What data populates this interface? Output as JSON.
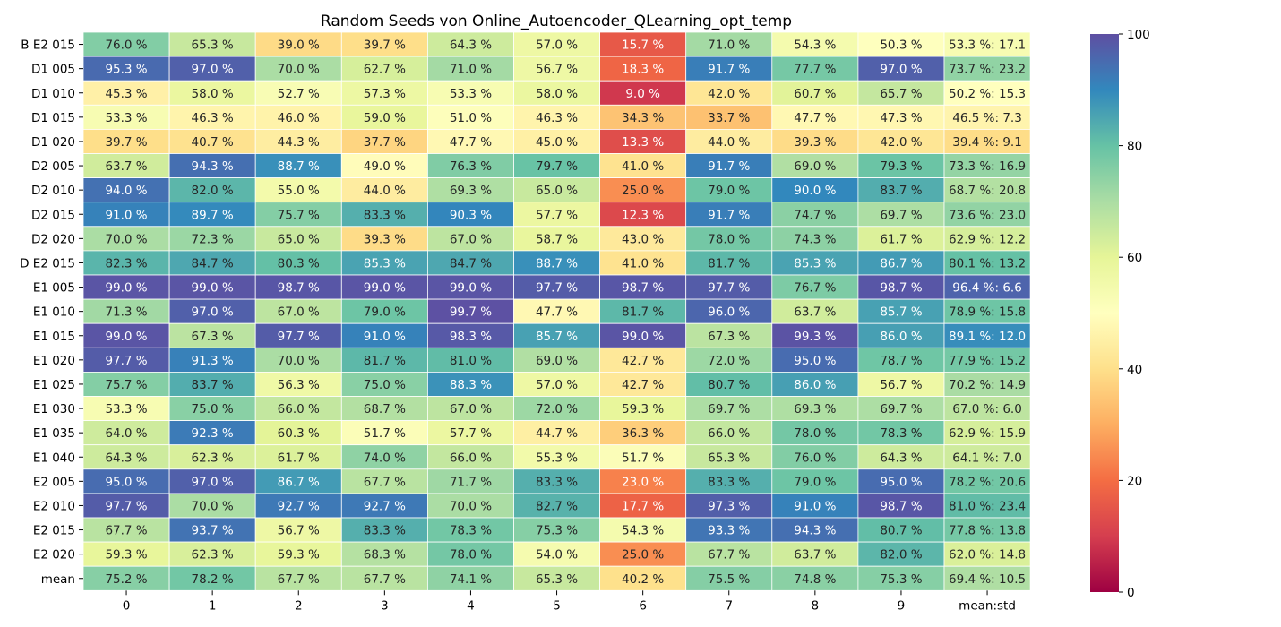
{
  "chart_data": {
    "type": "heatmap",
    "title": "Random Seeds von Online_Autoencoder_QLearning_opt_temp",
    "x_categories": [
      "0",
      "1",
      "2",
      "3",
      "4",
      "5",
      "6",
      "7",
      "8",
      "9",
      "mean:std"
    ],
    "y_categories": [
      "B E2 015",
      "D1 005",
      "D1 010",
      "D1 015",
      "D1 020",
      "D2 005",
      "D2 010",
      "D2 015",
      "D2 020",
      "D E2 015",
      "E1 005",
      "E1 010",
      "E1 015",
      "E1 020",
      "E1 025",
      "E1 030",
      "E1 035",
      "E1 040",
      "E2 005",
      "E2 010",
      "E2 015",
      "E2 020",
      "mean"
    ],
    "values": [
      [
        76.0,
        65.3,
        39.0,
        39.7,
        64.3,
        57.0,
        15.7,
        71.0,
        54.3,
        50.3,
        53.3
      ],
      [
        95.3,
        97.0,
        70.0,
        62.7,
        71.0,
        56.7,
        18.3,
        91.7,
        77.7,
        97.0,
        73.7
      ],
      [
        45.3,
        58.0,
        52.7,
        57.3,
        53.3,
        58.0,
        9.0,
        42.0,
        60.7,
        65.7,
        50.2
      ],
      [
        53.3,
        46.3,
        46.0,
        59.0,
        51.0,
        46.3,
        34.3,
        33.7,
        47.7,
        47.3,
        46.5
      ],
      [
        39.7,
        40.7,
        44.3,
        37.7,
        47.7,
        45.0,
        13.3,
        44.0,
        39.3,
        42.0,
        39.4
      ],
      [
        63.7,
        94.3,
        88.7,
        49.0,
        76.3,
        79.7,
        41.0,
        91.7,
        69.0,
        79.3,
        73.3
      ],
      [
        94.0,
        82.0,
        55.0,
        44.0,
        69.3,
        65.0,
        25.0,
        79.0,
        90.0,
        83.7,
        68.7
      ],
      [
        91.0,
        89.7,
        75.7,
        83.3,
        90.3,
        57.7,
        12.3,
        91.7,
        74.7,
        69.7,
        73.6
      ],
      [
        70.0,
        72.3,
        65.0,
        39.3,
        67.0,
        58.7,
        43.0,
        78.0,
        74.3,
        61.7,
        62.9
      ],
      [
        82.3,
        84.7,
        80.3,
        85.3,
        84.7,
        88.7,
        41.0,
        81.7,
        85.3,
        86.7,
        80.1
      ],
      [
        99.0,
        99.0,
        98.7,
        99.0,
        99.0,
        97.7,
        98.7,
        97.7,
        76.7,
        98.7,
        96.4
      ],
      [
        71.3,
        97.0,
        67.0,
        79.0,
        99.7,
        47.7,
        81.7,
        96.0,
        63.7,
        85.7,
        78.9
      ],
      [
        99.0,
        67.3,
        97.7,
        91.0,
        98.3,
        85.7,
        99.0,
        67.3,
        99.3,
        86.0,
        89.1
      ],
      [
        97.7,
        91.3,
        70.0,
        81.7,
        81.0,
        69.0,
        42.7,
        72.0,
        95.0,
        78.7,
        77.9
      ],
      [
        75.7,
        83.7,
        56.3,
        75.0,
        88.3,
        57.0,
        42.7,
        80.7,
        86.0,
        56.7,
        70.2
      ],
      [
        53.3,
        75.0,
        66.0,
        68.7,
        67.0,
        72.0,
        59.3,
        69.7,
        69.3,
        69.7,
        67.0
      ],
      [
        64.0,
        92.3,
        60.3,
        51.7,
        57.7,
        44.7,
        36.3,
        66.0,
        78.0,
        78.3,
        62.9
      ],
      [
        64.3,
        62.3,
        61.7,
        74.0,
        66.0,
        55.3,
        51.7,
        65.3,
        76.0,
        64.3,
        64.1
      ],
      [
        95.0,
        97.0,
        86.7,
        67.7,
        71.7,
        83.3,
        23.0,
        83.3,
        79.0,
        95.0,
        78.2
      ],
      [
        97.7,
        70.0,
        92.7,
        92.7,
        70.0,
        82.7,
        17.7,
        97.3,
        91.0,
        98.7,
        81.0
      ],
      [
        67.7,
        93.7,
        56.7,
        83.3,
        78.3,
        75.3,
        54.3,
        93.3,
        94.3,
        80.7,
        77.8
      ],
      [
        59.3,
        62.3,
        59.3,
        68.3,
        78.0,
        54.0,
        25.0,
        67.7,
        63.7,
        82.0,
        62.0
      ],
      [
        75.2,
        78.2,
        67.7,
        67.7,
        74.1,
        65.3,
        40.2,
        75.5,
        74.8,
        75.3,
        69.4
      ]
    ],
    "std": [
      17.1,
      23.2,
      15.3,
      7.3,
      9.1,
      16.9,
      20.8,
      23.0,
      12.2,
      13.2,
      6.6,
      15.8,
      12.0,
      15.2,
      14.9,
      6.0,
      15.9,
      7.0,
      20.6,
      23.4,
      13.8,
      14.8,
      10.5
    ],
    "value_format": "{v} %",
    "summary_format": "{v} %: {s}",
    "colormap": "Spectral",
    "vmin": 0,
    "vmax": 100,
    "colorbar_ticks": [
      0,
      20,
      40,
      60,
      80,
      100
    ],
    "colorbar_position": "right",
    "cell_border_color": "#ffffff"
  }
}
